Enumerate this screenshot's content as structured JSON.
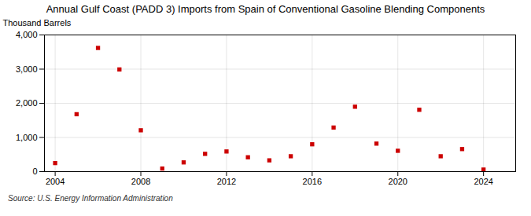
{
  "chart_data": {
    "type": "scatter",
    "title": "Annual Gulf Coast (PADD 3) Imports from Spain of Conventional Gasoline Blending Components",
    "ylabel": "Thousand Barrels",
    "caption": "Source: U.S. Energy Information Administration",
    "x": [
      2004,
      2005,
      2006,
      2007,
      2008,
      2009,
      2010,
      2011,
      2012,
      2013,
      2014,
      2015,
      2016,
      2017,
      2018,
      2019,
      2020,
      2021,
      2022,
      2023,
      2024
    ],
    "values": [
      250,
      1680,
      3620,
      2990,
      1210,
      90,
      270,
      520,
      590,
      420,
      330,
      450,
      800,
      1290,
      1900,
      820,
      610,
      1810,
      450,
      660,
      60
    ],
    "color": "#cc0000",
    "marker": "square",
    "xlim": [
      2003.5,
      2025.5
    ],
    "xticks": [
      2004,
      2008,
      2012,
      2016,
      2020,
      2024
    ],
    "ylim": [
      0,
      4000
    ],
    "yticks": [
      0,
      {
        "value": 1000,
        "label": "1,000"
      },
      {
        "value": 2000,
        "label": "2,000"
      },
      {
        "value": 3000,
        "label": "3,000"
      },
      {
        "value": 4000,
        "label": "4,000"
      }
    ],
    "grid": true
  }
}
